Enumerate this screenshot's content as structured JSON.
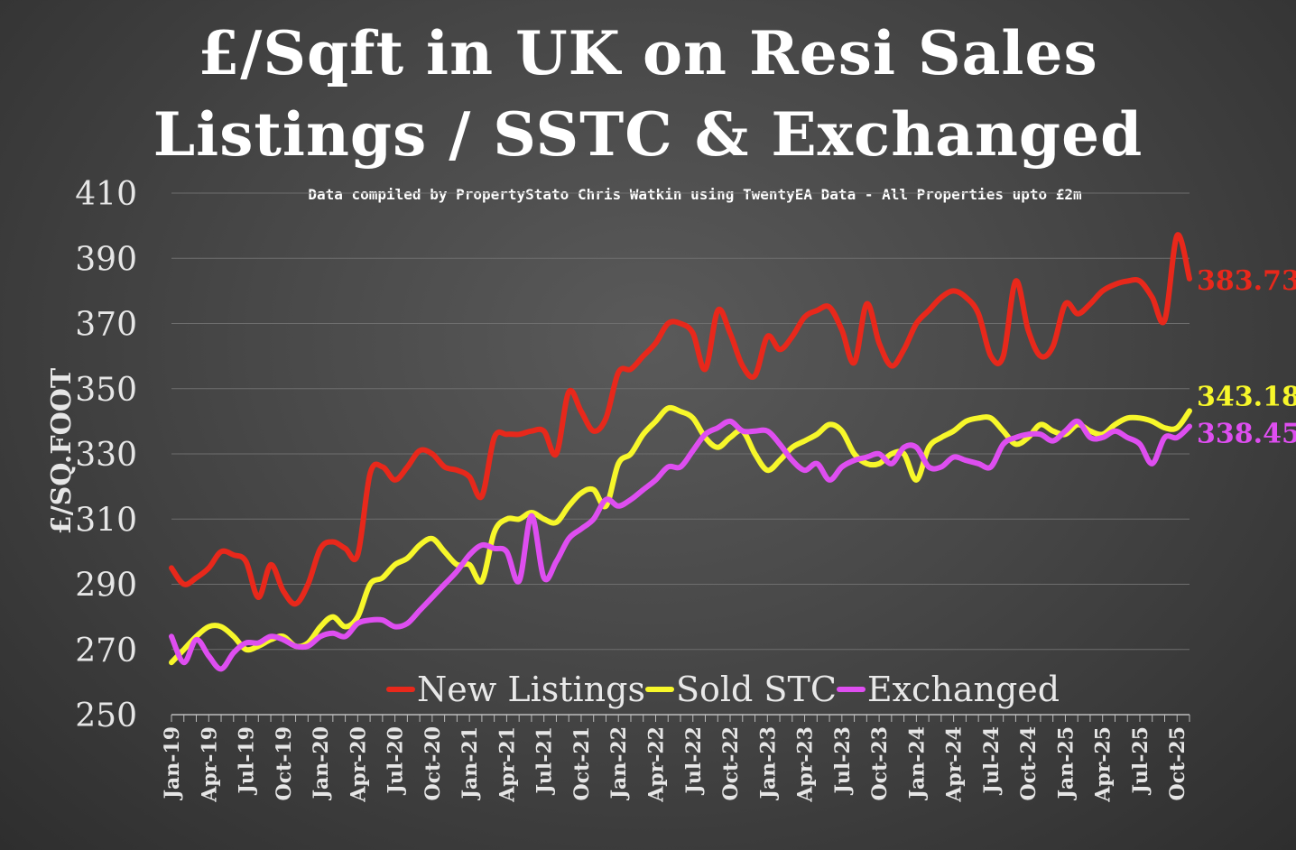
{
  "chart_data": {
    "type": "line",
    "title": [
      "£/Sqft in UK on Resi Sales",
      "Listings / SSTC & Exchanged"
    ],
    "subtitle": "Data compiled by PropertyStato Chris Watkin using TwentyEA Data - All Properties upto £2m",
    "ylabel": "£/SQ.FOOT",
    "ylim": [
      250,
      410
    ],
    "yticks": [
      250,
      270,
      290,
      310,
      330,
      350,
      370,
      390,
      410
    ],
    "grid": true,
    "legend_position": "bottom-center",
    "xlabels": [
      "Jan-19",
      "Apr-19",
      "Jul-19",
      "Oct-19",
      "Jan-20",
      "Apr-20",
      "Jul-20",
      "Oct-20",
      "Jan-21",
      "Apr-21",
      "Jul-21",
      "Oct-21",
      "Jan-22",
      "Apr-22",
      "Jul-22",
      "Oct-22",
      "Jan-23",
      "Apr-23",
      "Jul-23",
      "Oct-23",
      "Jan-24",
      "Apr-24",
      "Jul-24",
      "Oct-24",
      "Jan-25",
      "Apr-25",
      "Jul-25",
      "Oct-25"
    ],
    "x_start": "Jan-19",
    "series": [
      {
        "name": "New Listings",
        "color": "#e8281b",
        "end_label": "383.73",
        "values": [
          295,
          290,
          292,
          295,
          300,
          299,
          297,
          286,
          296,
          288,
          284,
          290,
          301,
          303,
          301,
          299,
          324,
          326,
          322,
          326,
          331,
          330,
          326,
          325,
          323,
          317,
          335,
          336,
          336,
          337,
          337,
          330,
          349,
          343,
          337,
          341,
          355,
          356,
          360,
          364,
          370,
          370,
          367,
          356,
          374,
          367,
          357,
          354,
          366,
          362,
          366,
          372,
          374,
          375,
          368,
          358,
          376,
          364,
          357,
          362,
          370,
          374,
          378,
          380,
          378,
          373,
          360,
          360,
          383,
          368,
          360,
          363,
          376,
          373,
          376,
          380,
          382,
          383,
          383,
          378,
          371,
          397,
          383.73
        ]
      },
      {
        "name": "Sold STC",
        "color": "#f7f72a",
        "end_label": "343.18",
        "values": [
          266,
          270,
          274,
          277,
          277,
          274,
          270,
          271,
          273,
          274,
          271,
          272,
          277,
          280,
          277,
          280,
          290,
          292,
          296,
          298,
          302,
          304,
          300,
          296,
          296,
          291,
          306,
          310,
          310,
          312,
          310,
          309,
          314,
          318,
          319,
          314,
          327,
          330,
          336,
          340,
          344,
          343,
          341,
          335,
          332,
          335,
          337,
          330,
          325,
          328,
          332,
          334,
          336,
          339,
          337,
          330,
          327,
          327,
          330,
          330,
          322,
          332,
          335,
          337,
          340,
          341,
          341,
          337,
          333,
          335,
          339,
          337,
          336,
          339,
          337,
          336,
          339,
          341,
          341,
          340,
          338,
          338,
          343.18
        ]
      },
      {
        "name": "Exchanged",
        "color": "#de4ef0",
        "end_label": "338.45",
        "values": [
          274,
          266,
          273,
          268,
          264,
          269,
          272,
          272,
          274,
          273,
          271,
          271,
          274,
          275,
          274,
          278,
          279,
          279,
          277,
          278,
          282,
          286,
          290,
          294,
          299,
          302,
          301,
          300,
          291,
          311,
          292,
          297,
          304,
          307,
          310,
          316,
          314,
          316,
          319,
          322,
          326,
          326,
          331,
          336,
          338,
          340,
          337,
          337,
          337,
          333,
          328,
          325,
          327,
          322,
          326,
          328,
          329,
          330,
          327,
          332,
          332,
          326,
          326,
          329,
          328,
          327,
          326,
          333,
          335,
          336,
          336,
          334,
          337,
          340,
          335,
          335,
          337,
          335,
          333,
          327,
          335,
          335,
          338.45
        ]
      }
    ]
  }
}
